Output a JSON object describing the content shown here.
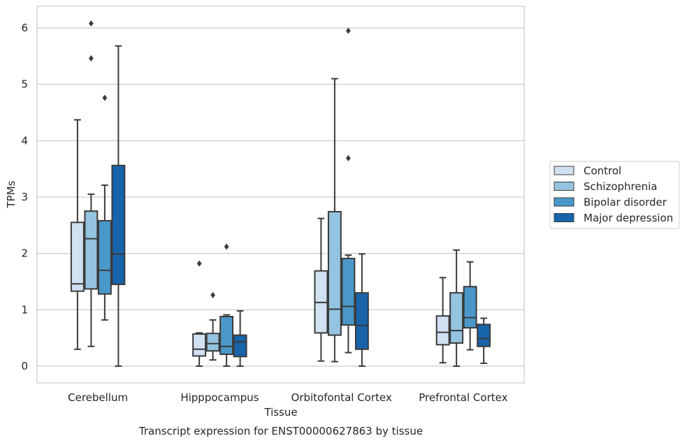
{
  "chart_data": {
    "type": "box",
    "title": "",
    "caption": "Transcript expression for ENST00000627863 by tissue",
    "xlabel": "Tissue",
    "ylabel": "TPMs",
    "ylim": [
      -0.3,
      6.4
    ],
    "yticks": [
      0,
      1,
      2,
      3,
      4,
      5,
      6
    ],
    "grid": "horizontal",
    "legend_position": "right",
    "categories": [
      "Cerebellum",
      "Hipppocampus",
      "Orbitofontal Cortex",
      "Prefrontal Cortex"
    ],
    "series": [
      {
        "name": "Control",
        "color": "#d0e1f2",
        "boxes": [
          {
            "whisker_low": 0.3,
            "q1": 1.33,
            "median": 1.46,
            "q3": 2.55,
            "whisker_high": 4.37,
            "outliers": []
          },
          {
            "whisker_low": 0.0,
            "q1": 0.18,
            "median": 0.3,
            "q3": 0.57,
            "whisker_high": 0.59,
            "outliers": [
              1.82
            ]
          },
          {
            "whisker_low": 0.09,
            "q1": 0.59,
            "median": 1.13,
            "q3": 1.69,
            "whisker_high": 2.62,
            "outliers": []
          },
          {
            "whisker_low": 0.06,
            "q1": 0.38,
            "median": 0.6,
            "q3": 0.89,
            "whisker_high": 1.57,
            "outliers": []
          }
        ]
      },
      {
        "name": "Schizophrenia",
        "color": "#94c4df",
        "boxes": [
          {
            "whisker_low": 0.35,
            "q1": 1.37,
            "median": 2.26,
            "q3": 2.75,
            "whisker_high": 3.05,
            "outliers": [
              5.46,
              6.08
            ]
          },
          {
            "whisker_low": 0.11,
            "q1": 0.27,
            "median": 0.4,
            "q3": 0.58,
            "whisker_high": 0.82,
            "outliers": [
              1.26
            ]
          },
          {
            "whisker_low": 0.08,
            "q1": 0.55,
            "median": 1.01,
            "q3": 2.74,
            "whisker_high": 5.1,
            "outliers": []
          },
          {
            "whisker_low": 0.0,
            "q1": 0.41,
            "median": 0.63,
            "q3": 1.3,
            "whisker_high": 2.06,
            "outliers": []
          }
        ]
      },
      {
        "name": "Bipolar disorder",
        "color": "#4a98c9",
        "boxes": [
          {
            "whisker_low": 0.82,
            "q1": 1.28,
            "median": 1.7,
            "q3": 2.58,
            "whisker_high": 3.21,
            "outliers": [
              4.76
            ]
          },
          {
            "whisker_low": 0.0,
            "q1": 0.21,
            "median": 0.35,
            "q3": 0.88,
            "whisker_high": 0.91,
            "outliers": [
              2.12
            ]
          },
          {
            "whisker_low": 0.24,
            "q1": 0.73,
            "median": 1.06,
            "q3": 1.91,
            "whisker_high": 1.97,
            "outliers": [
              3.69,
              5.95
            ]
          },
          {
            "whisker_low": 0.29,
            "q1": 0.68,
            "median": 0.86,
            "q3": 1.41,
            "whisker_high": 1.85,
            "outliers": []
          }
        ]
      },
      {
        "name": "Major depression",
        "color": "#1764ab",
        "boxes": [
          {
            "whisker_low": 0.0,
            "q1": 1.45,
            "median": 1.99,
            "q3": 3.56,
            "whisker_high": 5.68,
            "outliers": []
          },
          {
            "whisker_low": 0.0,
            "q1": 0.17,
            "median": 0.43,
            "q3": 0.55,
            "whisker_high": 0.98,
            "outliers": []
          },
          {
            "whisker_low": 0.0,
            "q1": 0.3,
            "median": 0.72,
            "q3": 1.3,
            "whisker_high": 1.99,
            "outliers": []
          },
          {
            "whisker_low": 0.05,
            "q1": 0.35,
            "median": 0.49,
            "q3": 0.74,
            "whisker_high": 0.85,
            "outliers": []
          }
        ]
      }
    ]
  }
}
